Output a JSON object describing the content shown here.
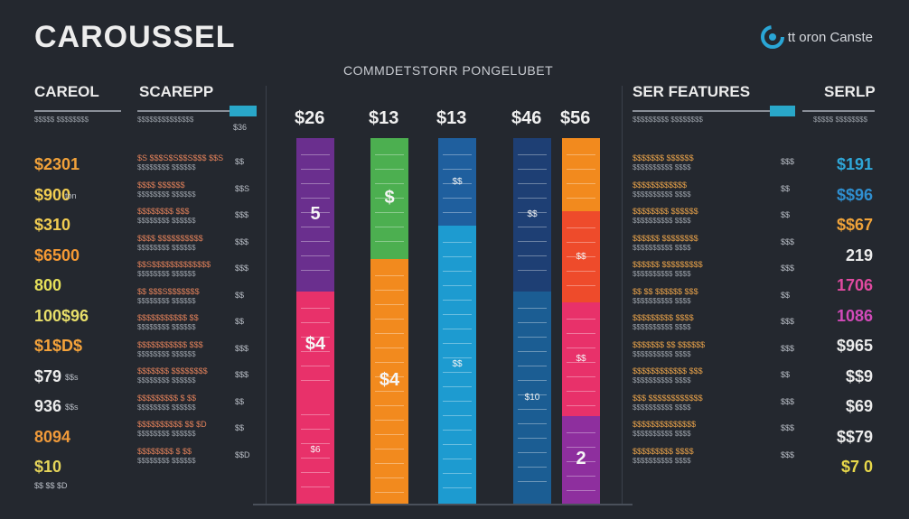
{
  "header": {
    "title": "CAROUSSEL",
    "subtitle": "COMMDETSTORR PONGELUBET",
    "brand": "tt oron Canste"
  },
  "left_panel": {
    "col1_title": "CAREOL",
    "col2_title": "SCAREPP",
    "col3_value": "$36",
    "prices": [
      {
        "value": "$2301",
        "color": "#f2a23a"
      },
      {
        "value": "$900",
        "color": "#f2cd52"
      },
      {
        "value": "$310",
        "color": "#f2cd52"
      },
      {
        "value": "$6500",
        "color": "#f59a34"
      },
      {
        "value": "800",
        "color": "#e6e05a"
      },
      {
        "value": "100$96",
        "color": "#e8df6a"
      },
      {
        "value": "$1$D$",
        "color": "#f5a33b"
      },
      {
        "value": "$79",
        "color": "#ececec"
      },
      {
        "value": "936",
        "color": "#ececec"
      },
      {
        "value": "8094",
        "color": "#f09a3a"
      },
      {
        "value": "$10",
        "color": "#e6d55a"
      }
    ],
    "price_notes": [
      "",
      "ton",
      "",
      "",
      "",
      "",
      "",
      "$$s",
      "$$s",
      "",
      ""
    ],
    "bottom_note": "$$ $$ $D",
    "rows": [
      {
        "text": "$S $$$S$S$$S$$$ $$S",
        "right": "$$"
      },
      {
        "text": "$$$$ $$$$$$",
        "right": "$$S"
      },
      {
        "text": "$$$$$$$$ $$$",
        "right": "$$$"
      },
      {
        "text": "$$$$ $$$$$$$$$$",
        "right": "$$$"
      },
      {
        "text": "$$S$$$$$$$$$$$$$",
        "right": "$$$"
      },
      {
        "text": "$$ $$$S$$$$$$$",
        "right": "$$"
      },
      {
        "text": "$$$$$$$$$$$ $$",
        "right": "$$"
      },
      {
        "text": "$$$$$$$$$$$ $$$",
        "right": "$$$"
      },
      {
        "text": "$$$$$$$ $$$$$$$$",
        "right": "$$$"
      },
      {
        "text": "$$$$$$$$$ $ $$",
        "right": "$$"
      },
      {
        "text": "$$$$$$$$$$ $$ $D",
        "right": "$$"
      },
      {
        "text": "$$$$$$$$ $ $$",
        "right": "$$D"
      }
    ]
  },
  "bars": [
    {
      "label": "$26",
      "segments": [
        {
          "color": "#6a2f8e",
          "frac": 0.42,
          "text": "5",
          "big": true
        },
        {
          "color": "#e8316a",
          "frac": 0.29,
          "text": "$4",
          "big": true
        },
        {
          "color": "#e8316a",
          "frac": 0.29,
          "text": "$6",
          "big": false
        }
      ]
    },
    {
      "label": "$13",
      "segments": [
        {
          "color": "#4caf50",
          "frac": 0.33,
          "text": "$",
          "big": true
        },
        {
          "color": "#f28a1e",
          "frac": 0.67,
          "text": "$4",
          "big": true
        }
      ]
    },
    {
      "label": "$13",
      "segments": [
        {
          "color": "#1f5f9e",
          "frac": 0.24,
          "text": "$$",
          "big": false
        },
        {
          "color": "#1d9bd0",
          "frac": 0.76,
          "text": "$$",
          "big": false
        }
      ]
    },
    {
      "label": "$46",
      "segments": [
        {
          "color": "#1e3f74",
          "frac": 0.42,
          "text": "$$",
          "big": false
        },
        {
          "color": "#1b5d93",
          "frac": 0.58,
          "text": "$10",
          "big": false
        }
      ]
    },
    {
      "label": "$56",
      "segments": [
        {
          "color": "#f28a1e",
          "frac": 0.2,
          "text": "",
          "big": false
        },
        {
          "color": "#ee4b2b",
          "frac": 0.25,
          "text": "$$",
          "big": false
        },
        {
          "color": "#e8316a",
          "frac": 0.31,
          "text": "$$",
          "big": false
        },
        {
          "color": "#8e2f9e",
          "frac": 0.24,
          "text": "2",
          "big": true
        }
      ]
    }
  ],
  "right_panel": {
    "col1_title": "SER FEATURES",
    "col2_title": "SERLP",
    "prices": [
      {
        "value": "$191",
        "color": "#2fa7d8"
      },
      {
        "value": "$$96",
        "color": "#2f8fd0"
      },
      {
        "value": "$$67",
        "color": "#f0a33a"
      },
      {
        "value": "219",
        "color": "#ececec"
      },
      {
        "value": "1706",
        "color": "#e04aa0"
      },
      {
        "value": "1086",
        "color": "#d14ab8"
      },
      {
        "value": "$965",
        "color": "#ececec"
      },
      {
        "value": "$$9",
        "color": "#ececec"
      },
      {
        "value": "$69",
        "color": "#ececec"
      },
      {
        "value": "$$79",
        "color": "#ececec"
      },
      {
        "value": "$7 0",
        "color": "#e8d84a"
      }
    ],
    "rows": [
      {
        "text": "$$$$$$$ $$$$$$",
        "right": "$$$"
      },
      {
        "text": "$$$$$$$$$$$$",
        "right": "$$"
      },
      {
        "text": "$$$$$$$$ $$$$$$",
        "right": "$$"
      },
      {
        "text": "$$$$$$ $$$$$$$$",
        "right": "$$$"
      },
      {
        "text": "$$$$$$ $$$$$$$$$",
        "right": "$$$"
      },
      {
        "text": "$$ $$ $$$$$$ $$$",
        "right": "$$"
      },
      {
        "text": "$$$$$$$$$ $$$$",
        "right": "$$$"
      },
      {
        "text": "$$$$$$$ $$ $$$$$$",
        "right": "$$$"
      },
      {
        "text": "$$$$$$$$$$$$ $$$",
        "right": "$$"
      },
      {
        "text": "$$$ $$$$$$$$$$$$",
        "right": "$$$"
      },
      {
        "text": "$$$$$$$$$$$$$$",
        "right": "$$$"
      },
      {
        "text": "$$$$$$$$$ $$$$",
        "right": "$$$"
      }
    ]
  }
}
